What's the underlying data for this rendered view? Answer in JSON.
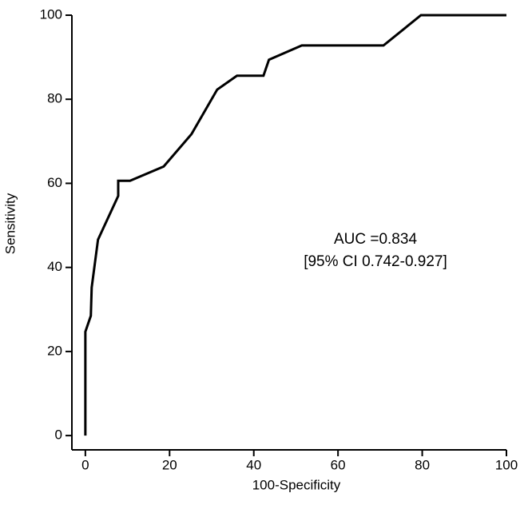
{
  "chart_data": {
    "type": "line",
    "xlabel": "100-Specificity",
    "ylabel": "Sensitivity",
    "annotations": [
      "AUC =0.834",
      "[95% CI 0.742-0.927]"
    ],
    "x": [
      0,
      0,
      0,
      1.3,
      1.5,
      3,
      7.8,
      7.8,
      10.6,
      18.6,
      25.2,
      31.3,
      36,
      42.3,
      43.6,
      51.4,
      70.8,
      79.7,
      100
    ],
    "values": [
      0,
      20,
      24.7,
      28.5,
      35.2,
      46.6,
      57,
      60.6,
      60.6,
      64,
      71.7,
      82.3,
      85.6,
      85.6,
      89.4,
      92.8,
      92.8,
      100,
      100
    ],
    "color": "#000000",
    "xlim": [
      -3.2,
      100
    ],
    "ylim": [
      -3.4,
      100
    ],
    "xticks": [
      0,
      20,
      40,
      60,
      80,
      100
    ],
    "yticks": [
      0,
      20,
      40,
      60,
      80,
      100
    ]
  }
}
